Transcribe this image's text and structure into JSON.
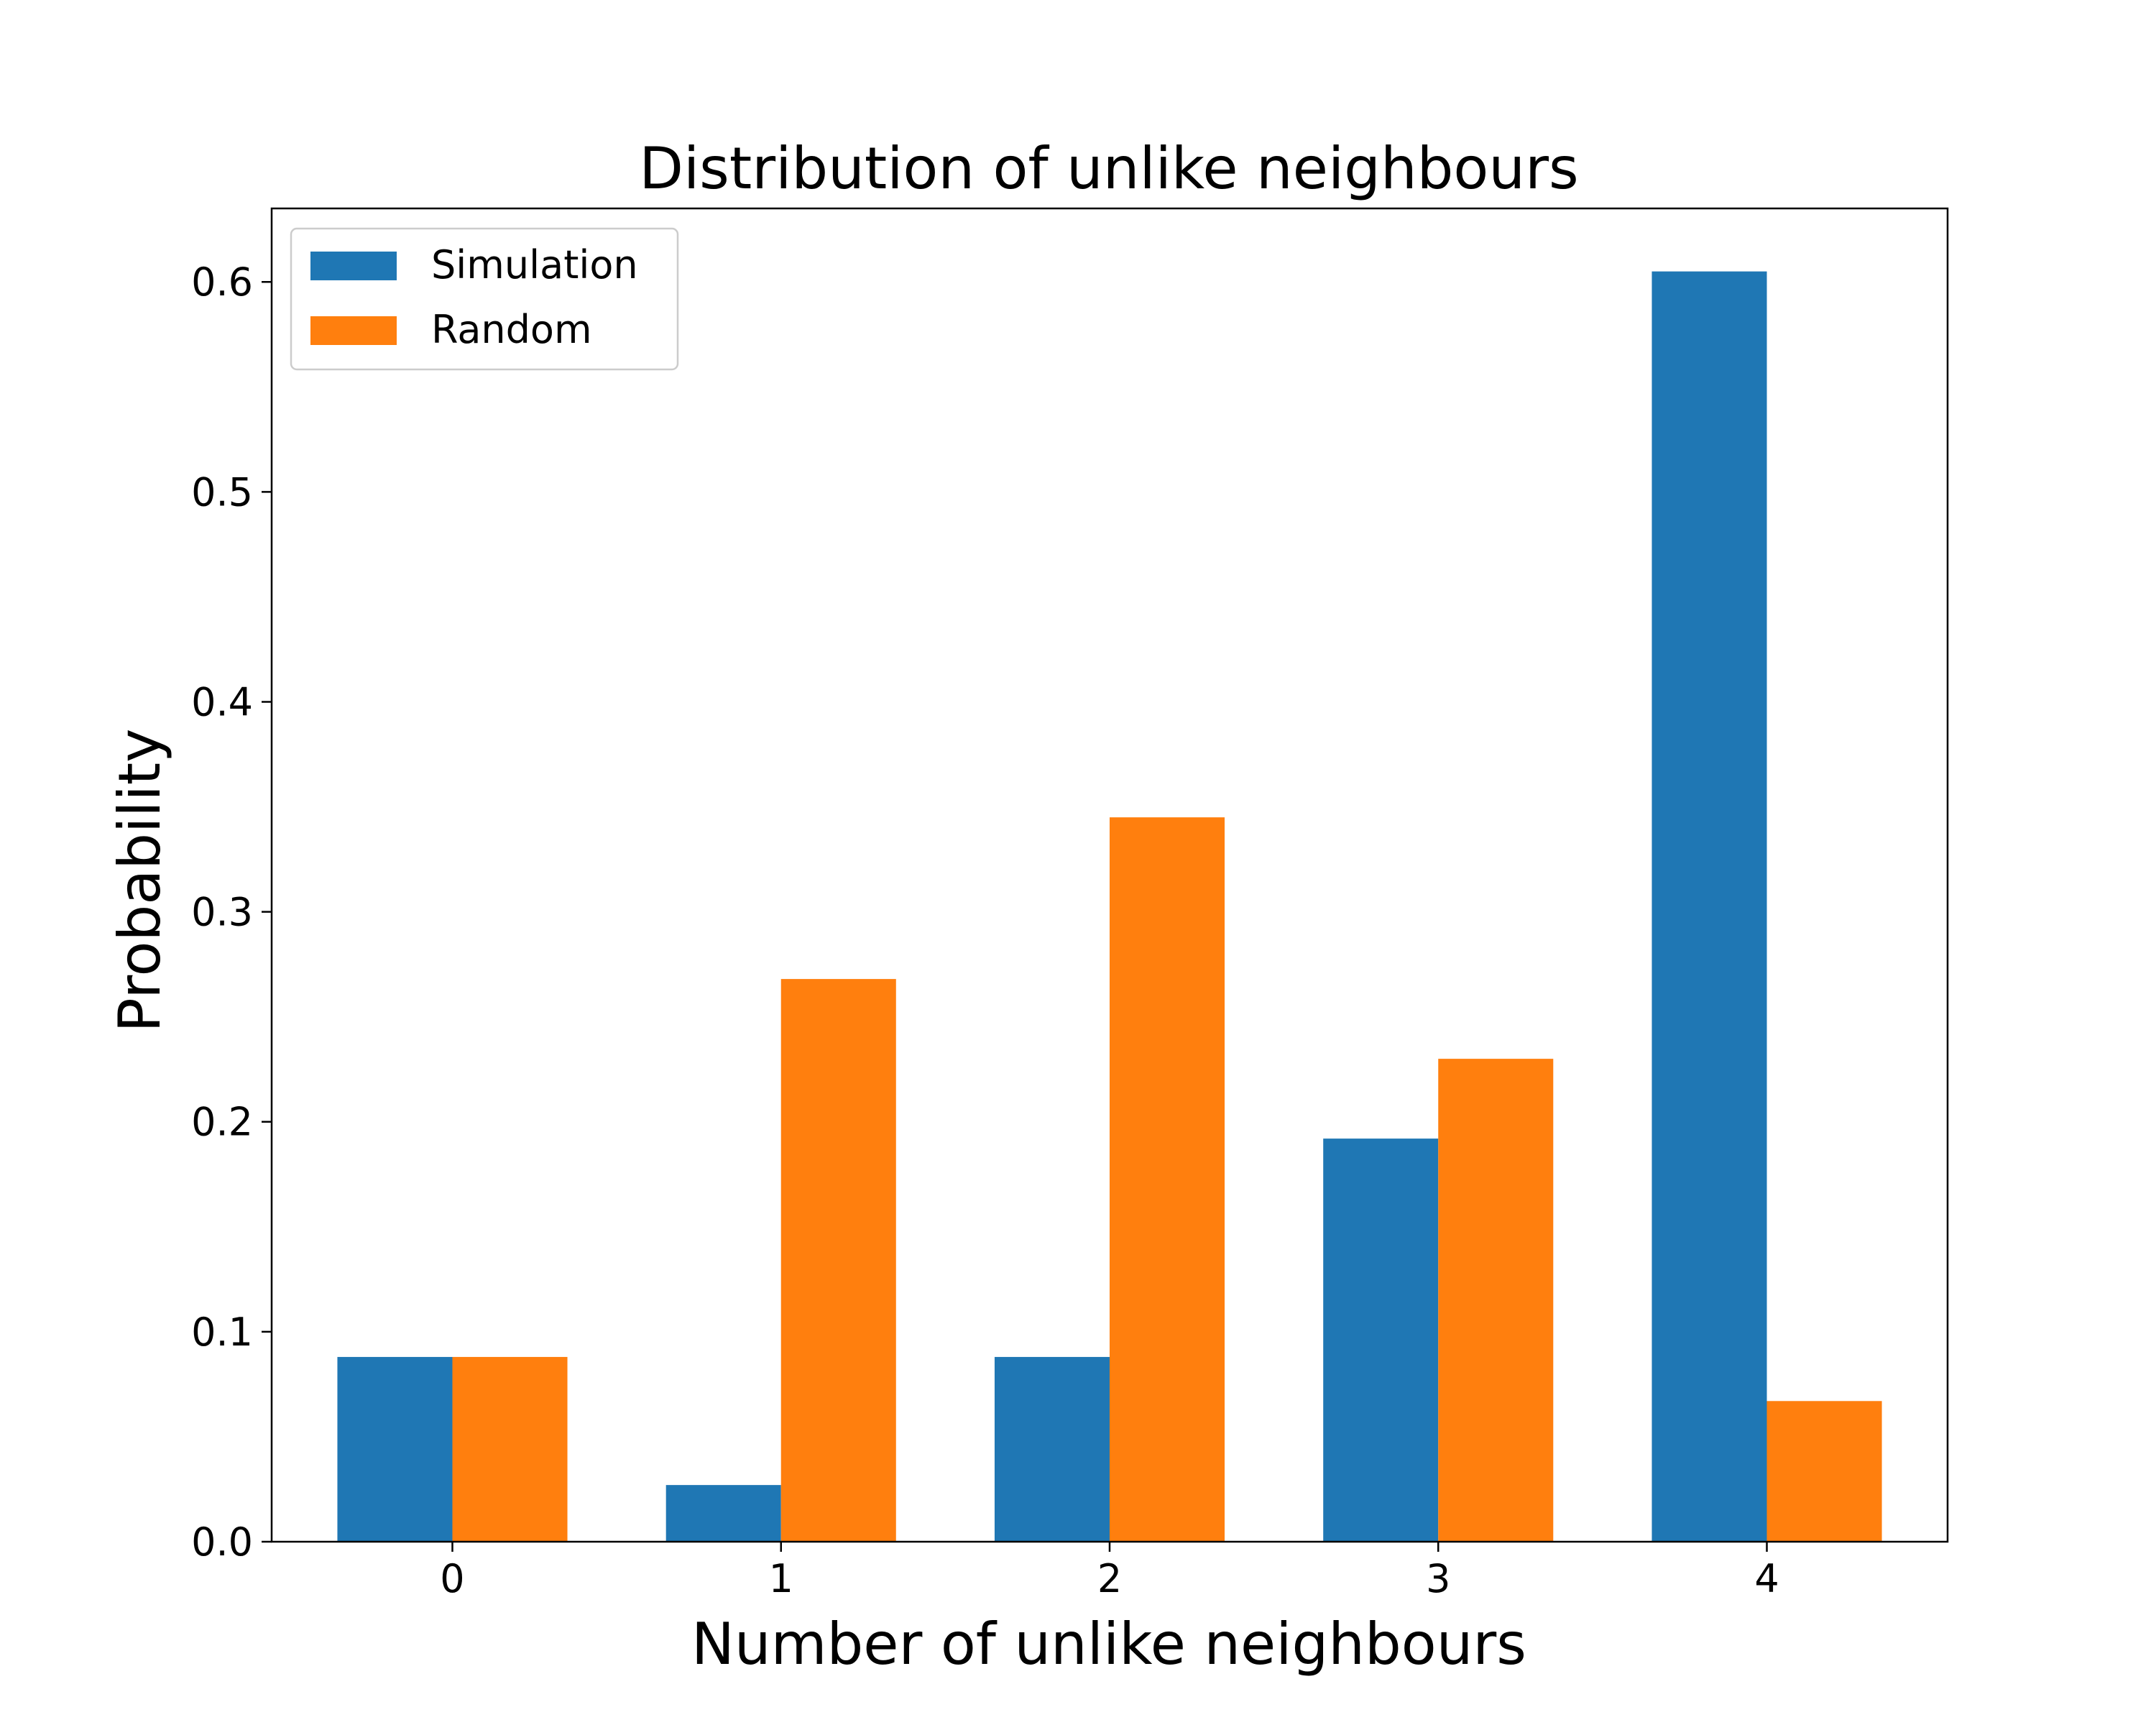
{
  "chart_data": {
    "type": "bar",
    "title": "Distribution of unlike neighbours",
    "xlabel": "Number of unlike neighbours",
    "ylabel": "Probability",
    "categories": [
      "0",
      "1",
      "2",
      "3",
      "4"
    ],
    "series": [
      {
        "name": "Simulation",
        "color": "#1f77b4",
        "values": [
          0.088,
          0.027,
          0.088,
          0.192,
          0.605
        ]
      },
      {
        "name": "Random",
        "color": "#ff7f0e",
        "values": [
          0.088,
          0.268,
          0.345,
          0.23,
          0.067
        ]
      }
    ],
    "yticks": [
      "0.0",
      "0.1",
      "0.2",
      "0.3",
      "0.4",
      "0.5",
      "0.6"
    ],
    "ylim": [
      0,
      0.635
    ],
    "grid": false,
    "legend": {
      "position": "top-left"
    }
  }
}
